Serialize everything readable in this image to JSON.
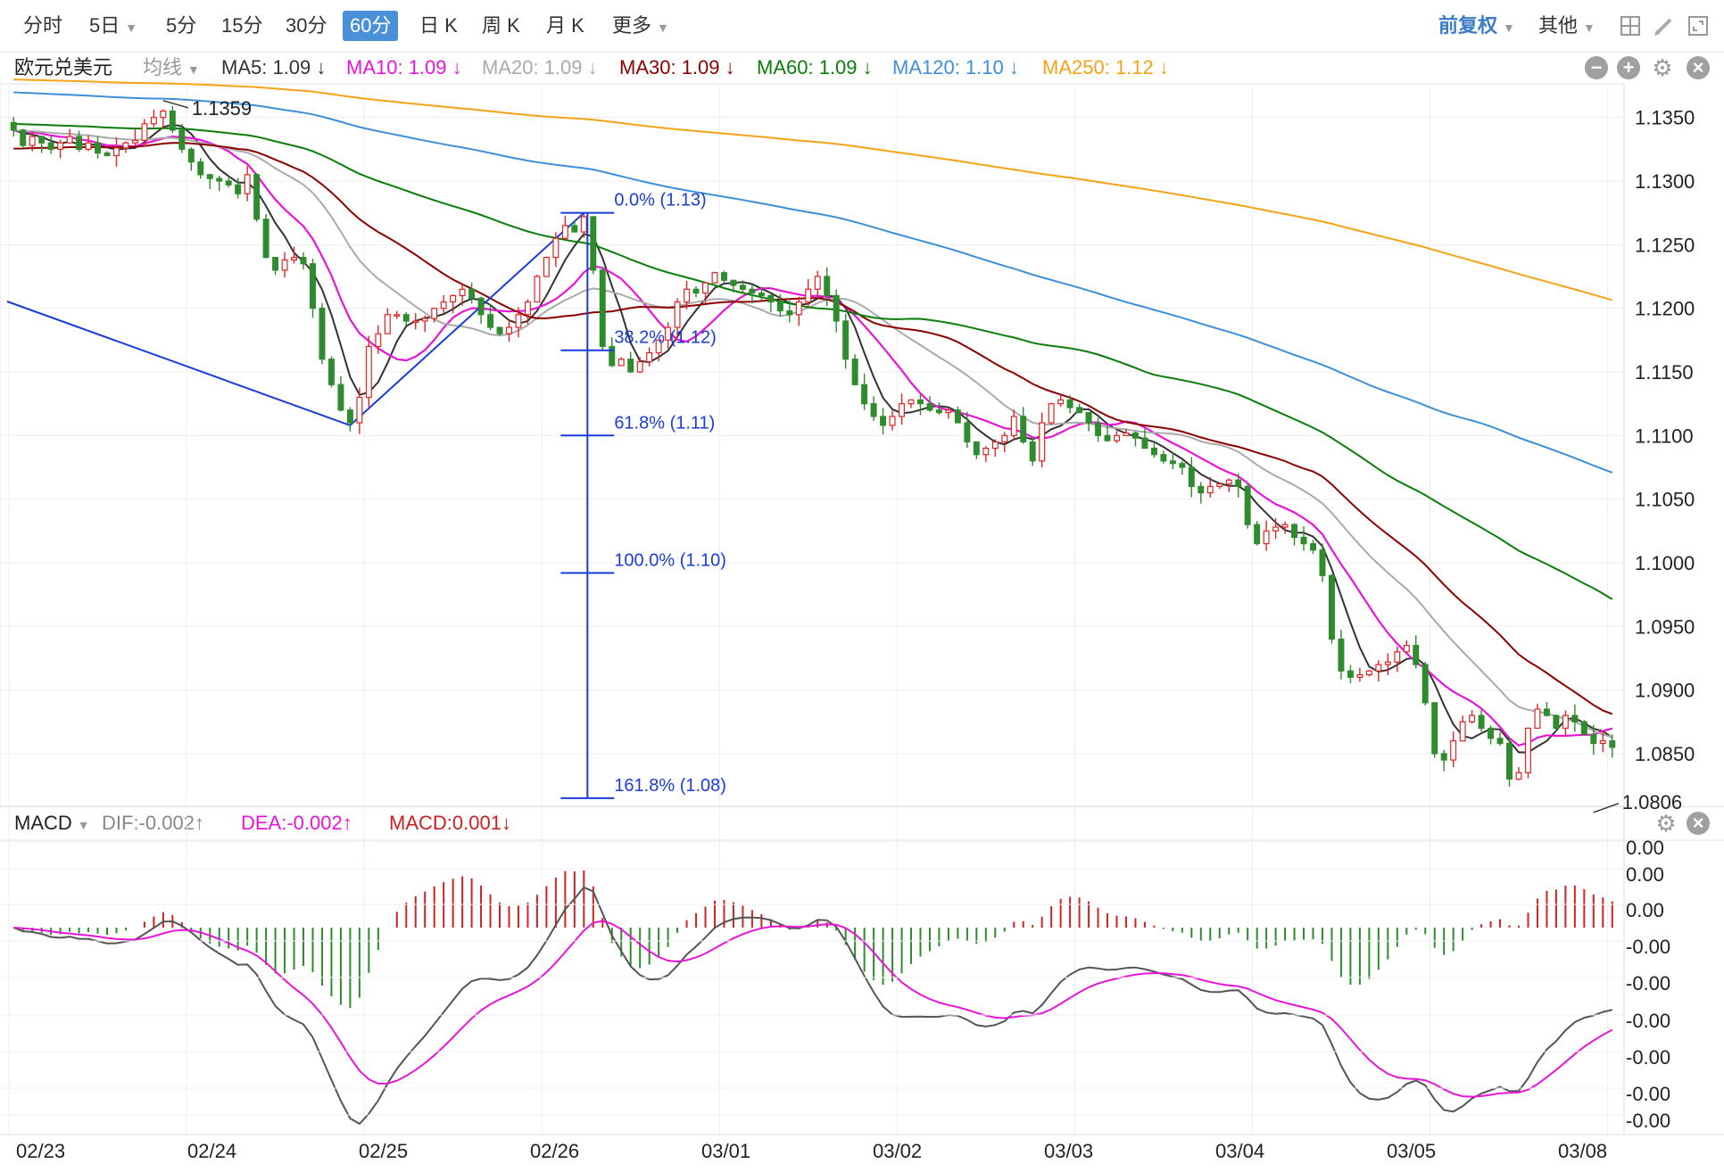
{
  "toolbar": {
    "periods": [
      {
        "label": "分时",
        "active": false
      },
      {
        "label": "5日",
        "active": false,
        "dropdown": true
      },
      {
        "label": "5分",
        "active": false
      },
      {
        "label": "15分",
        "active": false
      },
      {
        "label": "30分",
        "active": false
      },
      {
        "label": "60分",
        "active": true
      },
      {
        "label": "日 K",
        "active": false
      },
      {
        "label": "周 K",
        "active": false
      },
      {
        "label": "月 K",
        "active": false
      },
      {
        "label": "更多",
        "active": false,
        "dropdown": true
      }
    ],
    "adjust": "前复权",
    "other": "其他"
  },
  "legend": {
    "symbol": "欧元兑美元",
    "ma_select": "均线",
    "items": [
      {
        "label": "MA5: 1.09 ↓",
        "color": "#333333"
      },
      {
        "label": "MA10: 1.09 ↓",
        "color": "#e815d8"
      },
      {
        "label": "MA20: 1.09 ↓",
        "color": "#aaaaaa"
      },
      {
        "label": "MA30: 1.09 ↓",
        "color": "#8b0000"
      },
      {
        "label": "MA60: 1.09 ↓",
        "color": "#0a7d0a"
      },
      {
        "label": "MA120: 1.10 ↓",
        "color": "#3d8fd9"
      },
      {
        "label": "MA250: 1.12 ↓",
        "color": "#f5a316"
      }
    ]
  },
  "macd_legend": {
    "name": "MACD",
    "dif": "DIF:-0.002↑",
    "dea": "DEA:-0.002↑",
    "macd": "MACD:0.001↓"
  },
  "chart_data": {
    "type": "candlestick",
    "symbol": "欧元兑美元",
    "period": "60分",
    "price_ticks": [
      "1.1350",
      "1.1300",
      "1.1250",
      "1.1200",
      "1.1150",
      "1.1100",
      "1.1050",
      "1.1000",
      "1.0950",
      "1.0900",
      "1.0850"
    ],
    "price_range": [
      1.081,
      1.1375
    ],
    "x_labels": [
      "02/23",
      "02/24",
      "02/25",
      "02/26",
      "03/01",
      "03/02",
      "03/03",
      "03/04",
      "03/05",
      "03/08"
    ],
    "annotations": {
      "high": "1.1359",
      "low": "1.0806"
    },
    "fibonacci": [
      {
        "label": "0.0% (1.13)",
        "price": 1.1275
      },
      {
        "label": "38.2% (1.12)",
        "price": 1.1167
      },
      {
        "label": "61.8% (1.11)",
        "price": 1.11
      },
      {
        "label": "100.0% (1.10)",
        "price": 1.0992
      },
      {
        "label": "161.8% (1.08)",
        "price": 1.0815
      }
    ],
    "close": [
      1.134,
      1.1328,
      1.1335,
      1.133,
      1.1325,
      1.133,
      1.1335,
      1.1325,
      1.133,
      1.1322,
      1.132,
      1.1326,
      1.133,
      1.1332,
      1.1345,
      1.135,
      1.1355,
      1.134,
      1.1325,
      1.1315,
      1.1305,
      1.1302,
      1.13,
      1.1297,
      1.129,
      1.1305,
      1.127,
      1.124,
      1.123,
      1.1238,
      1.124,
      1.1235,
      1.12,
      1.116,
      1.114,
      1.112,
      1.111,
      1.113,
      1.117,
      1.118,
      1.1195,
      1.1195,
      1.119,
      1.119,
      1.1192,
      1.12,
      1.1205,
      1.121,
      1.1215,
      1.1208,
      1.1195,
      1.1185,
      1.118,
      1.1185,
      1.1195,
      1.1205,
      1.1225,
      1.124,
      1.1255,
      1.1265,
      1.126,
      1.1272,
      1.123,
      1.117,
      1.1155,
      1.116,
      1.115,
      1.1158,
      1.1165,
      1.1175,
      1.1185,
      1.1205,
      1.1215,
      1.1212,
      1.122,
      1.1228,
      1.1222,
      1.1218,
      1.1215,
      1.1212,
      1.121,
      1.1205,
      1.1198,
      1.1195,
      1.1205,
      1.1215,
      1.1225,
      1.121,
      1.119,
      1.116,
      1.114,
      1.1125,
      1.1115,
      1.1108,
      1.1115,
      1.1125,
      1.1128,
      1.1125,
      1.112,
      1.1118,
      1.112,
      1.111,
      1.1095,
      1.1085,
      1.109,
      1.1095,
      1.11,
      1.1115,
      1.1095,
      1.108,
      1.111,
      1.1125,
      1.1128,
      1.1122,
      1.1118,
      1.111,
      1.11,
      1.1096,
      1.11,
      1.1102,
      1.1098,
      1.109,
      1.1085,
      1.108,
      1.1078,
      1.1075,
      1.106,
      1.1055,
      1.106,
      1.1062,
      1.1065,
      1.106,
      1.103,
      1.1015,
      1.1025,
      1.1028,
      1.103,
      1.102,
      1.1015,
      1.101,
      1.099,
      1.094,
      1.0915,
      1.091,
      1.0912,
      1.0915,
      1.092,
      1.0922,
      1.093,
      1.0935,
      1.092,
      1.089,
      1.085,
      1.0845,
      1.086,
      1.0875,
      1.088,
      1.087,
      1.0862,
      1.0858,
      1.083,
      1.0835,
      1.087,
      1.0885,
      1.088,
      1.087,
      1.088,
      1.0875,
      1.0865,
      1.0858,
      1.086,
      1.0855
    ],
    "macd": {
      "axis_ticks": [
        "0.00",
        "0.00",
        "0.00",
        "-0.00",
        "-0.00",
        "-0.00",
        "-0.00",
        "-0.00",
        "-0.00"
      ],
      "series": [
        "DIF",
        "DEA",
        "MACD"
      ]
    }
  }
}
